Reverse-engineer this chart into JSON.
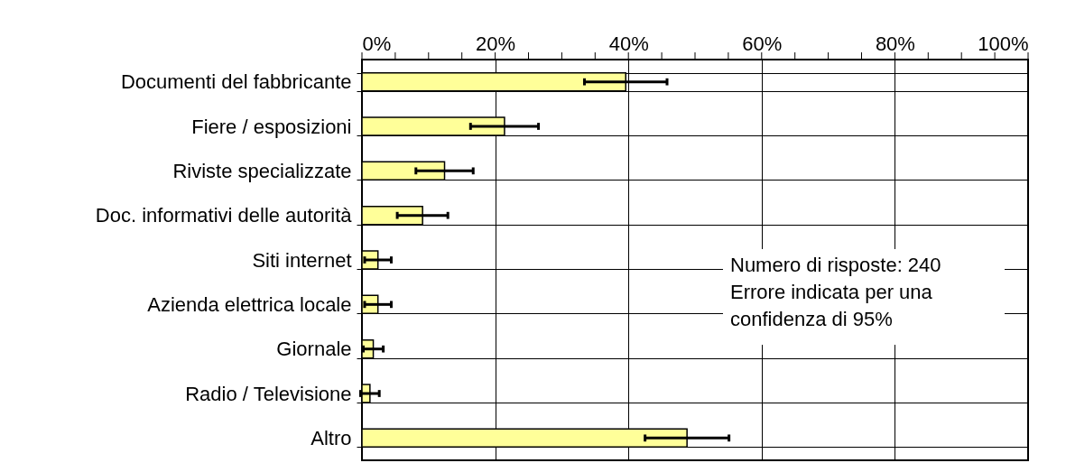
{
  "chart_data": {
    "type": "bar",
    "orientation": "horizontal",
    "categories": [
      "Documenti del fabbricante",
      "Fiere / esposizioni",
      "Riviste specializzate",
      "Doc. informativi delle autorità",
      "Siti internet",
      "Azienda elettrica locale",
      "Giornale",
      "Radio / Televisione",
      "Altro"
    ],
    "values": [
      39.6,
      21.4,
      12.4,
      9.1,
      2.4,
      2.4,
      1.7,
      1.2,
      48.8
    ],
    "errors": [
      6.2,
      5.1,
      4.3,
      3.8,
      2.0,
      2.0,
      1.5,
      1.4,
      6.3
    ],
    "color": "#ffff99",
    "xlim": [
      0,
      100
    ],
    "xticks": [
      {
        "value": 0,
        "label": "0%"
      },
      {
        "value": 5,
        "label": null
      },
      {
        "value": 10,
        "label": null
      },
      {
        "value": 15,
        "label": null
      },
      {
        "value": 20,
        "label": "20%"
      },
      {
        "value": 25,
        "label": null
      },
      {
        "value": 30,
        "label": null
      },
      {
        "value": 35,
        "label": null
      },
      {
        "value": 40,
        "label": "40%"
      },
      {
        "value": 45,
        "label": null
      },
      {
        "value": 50,
        "label": null
      },
      {
        "value": 55,
        "label": null
      },
      {
        "value": 60,
        "label": "60%"
      },
      {
        "value": 65,
        "label": null
      },
      {
        "value": 70,
        "label": null
      },
      {
        "value": 75,
        "label": null
      },
      {
        "value": 80,
        "label": "80%"
      },
      {
        "value": 85,
        "label": null
      },
      {
        "value": 90,
        "label": null
      },
      {
        "value": 95,
        "label": null
      },
      {
        "value": 100,
        "label": "100%"
      }
    ],
    "grid": true,
    "annotations": [
      "Numero di risposte: 240\nErrore indicata per una\nconfidenza di 95%"
    ]
  }
}
